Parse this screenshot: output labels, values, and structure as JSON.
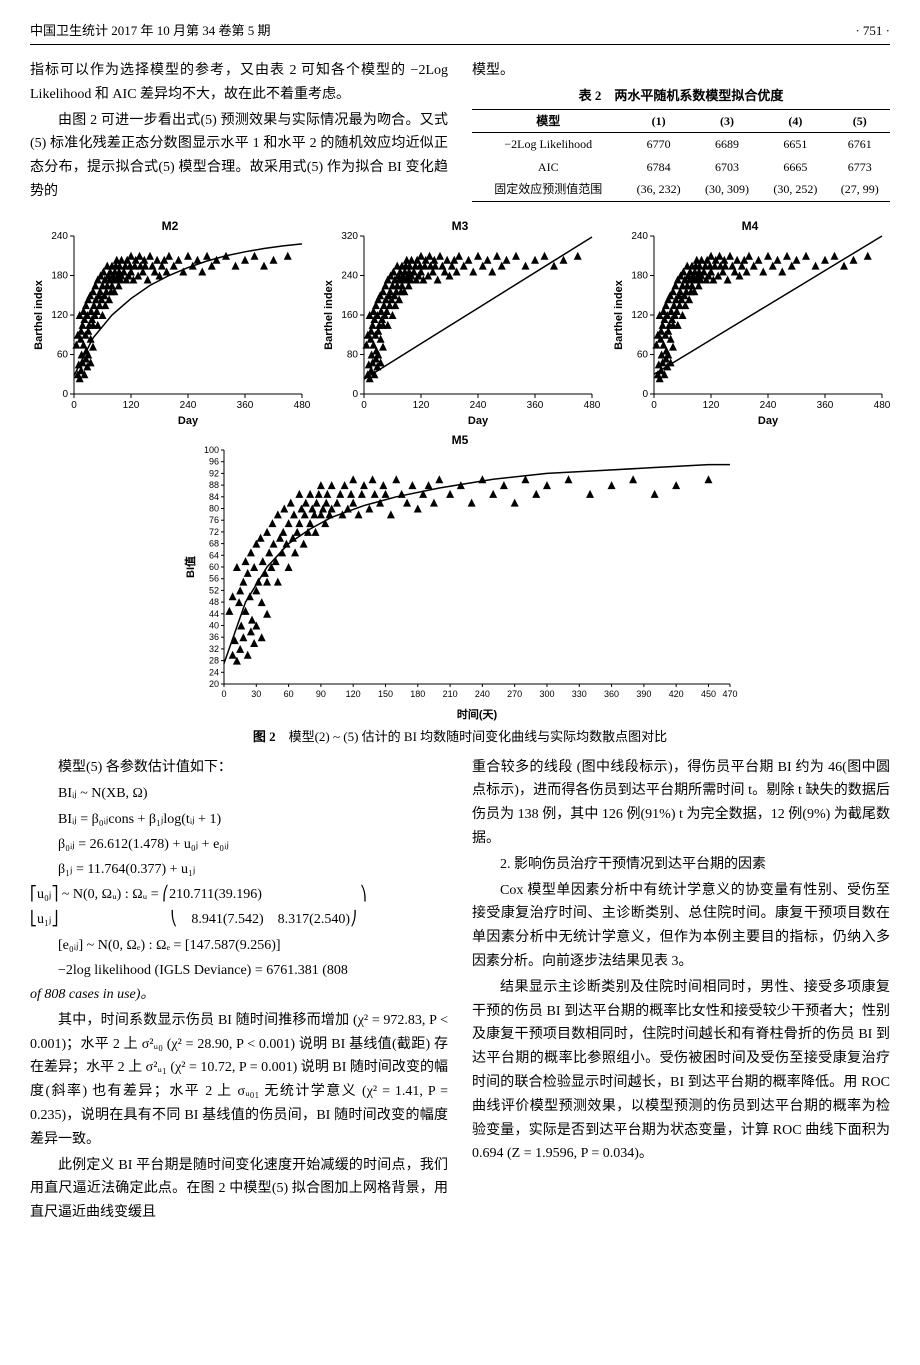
{
  "header": {
    "left": "中国卫生统计 2017 年 10 月第 34 卷第 5 期",
    "right": "· 751 ·"
  },
  "intro": {
    "p1": "指标可以作为选择模型的参考，又由表 2 可知各个模型的 −2Log Likelihood 和 AIC 差异均不大，故在此不着重考虑。",
    "p2": "由图 2 可进一步看出式(5) 预测效果与实际情况最为吻合。又式(5) 标准化残差正态分数图显示水平 1 和水平 2 的随机效应均近似正态分布，提示拟合式(5) 模型合理。故采用式(5) 作为拟合 BI 变化趋势的",
    "p2r": "模型。"
  },
  "table2": {
    "caption": "表 2　两水平随机系数模型拟合优度",
    "head": [
      "模型",
      "(1)",
      "(3)",
      "(4)",
      "(5)"
    ],
    "rows": [
      [
        "−2Log Likelihood",
        "6770",
        "6689",
        "6651",
        "6761"
      ],
      [
        "AIC",
        "6784",
        "6703",
        "6665",
        "6773"
      ],
      [
        "固定效应预测值范围",
        "(36, 232)",
        "(30, 309)",
        "(30, 252)",
        "(27, 99)"
      ]
    ]
  },
  "charts_style": {
    "bg": "#ffffff",
    "axis_color": "#000000",
    "marker": "triangle",
    "marker_color": "#000000",
    "marker_size": 4,
    "line_color": "#000000",
    "line_width": 1.5,
    "tick_font": 10,
    "label_font": 11,
    "title_font": 12
  },
  "chart_m2": {
    "title": "M2",
    "ylabel": "Barthel index",
    "xlabel": "Day",
    "xlim": [
      0,
      480
    ],
    "ylim": [
      0,
      240
    ],
    "xticks": [
      0,
      120,
      240,
      360,
      480
    ],
    "yticks": [
      0,
      60,
      120,
      180,
      240
    ],
    "curve": [
      [
        0,
        28
      ],
      [
        40,
        85
      ],
      [
        80,
        120
      ],
      [
        120,
        145
      ],
      [
        160,
        165
      ],
      [
        200,
        180
      ],
      [
        240,
        192
      ],
      [
        280,
        202
      ],
      [
        320,
        210
      ],
      [
        360,
        216
      ],
      [
        400,
        221
      ],
      [
        440,
        225
      ],
      [
        480,
        228
      ]
    ]
  },
  "chart_m3": {
    "title": "M3",
    "ylabel": "Barthel index",
    "xlabel": "Day",
    "xlim": [
      0,
      480
    ],
    "ylim": [
      0,
      320
    ],
    "xticks": [
      0,
      120,
      240,
      360,
      480
    ],
    "yticks": [
      0,
      80,
      160,
      240,
      320
    ],
    "curve": [
      [
        0,
        30
      ],
      [
        80,
        78
      ],
      [
        160,
        126
      ],
      [
        240,
        174
      ],
      [
        320,
        222
      ],
      [
        400,
        270
      ],
      [
        480,
        318
      ]
    ]
  },
  "chart_m4": {
    "title": "M4",
    "ylabel": "Barthel index",
    "xlabel": "Day",
    "xlim": [
      0,
      480
    ],
    "ylim": [
      0,
      240
    ],
    "xticks": [
      0,
      120,
      240,
      360,
      480
    ],
    "yticks": [
      0,
      60,
      120,
      180,
      240
    ],
    "curve": [
      [
        0,
        30
      ],
      [
        80,
        65
      ],
      [
        160,
        100
      ],
      [
        240,
        135
      ],
      [
        320,
        170
      ],
      [
        400,
        205
      ],
      [
        480,
        240
      ]
    ]
  },
  "chart_m5": {
    "title": "M5",
    "ylabel": "BI值",
    "xlabel": "时间(天)",
    "xlim": [
      0,
      470
    ],
    "ylim": [
      20,
      100
    ],
    "xticks": [
      0,
      30,
      60,
      90,
      120,
      150,
      180,
      210,
      240,
      270,
      300,
      330,
      360,
      390,
      420,
      450,
      470
    ],
    "yticks": [
      20,
      24,
      28,
      32,
      36,
      40,
      44,
      48,
      52,
      56,
      60,
      64,
      68,
      72,
      76,
      80,
      84,
      88,
      92,
      96,
      100
    ],
    "curve": [
      [
        0,
        27
      ],
      [
        20,
        48
      ],
      [
        40,
        60
      ],
      [
        60,
        68
      ],
      [
        80,
        73
      ],
      [
        100,
        77
      ],
      [
        130,
        81
      ],
      [
        160,
        84
      ],
      [
        200,
        87
      ],
      [
        250,
        90
      ],
      [
        300,
        92
      ],
      [
        350,
        93
      ],
      [
        400,
        94
      ],
      [
        450,
        95
      ],
      [
        470,
        95
      ]
    ]
  },
  "scatter": [
    [
      5,
      45
    ],
    [
      8,
      50
    ],
    [
      10,
      35
    ],
    [
      12,
      60
    ],
    [
      14,
      48
    ],
    [
      15,
      52
    ],
    [
      16,
      40
    ],
    [
      18,
      55
    ],
    [
      20,
      62
    ],
    [
      20,
      45
    ],
    [
      22,
      58
    ],
    [
      24,
      50
    ],
    [
      25,
      65
    ],
    [
      26,
      42
    ],
    [
      28,
      60
    ],
    [
      30,
      68
    ],
    [
      30,
      52
    ],
    [
      32,
      55
    ],
    [
      34,
      70
    ],
    [
      35,
      48
    ],
    [
      36,
      62
    ],
    [
      38,
      58
    ],
    [
      40,
      72
    ],
    [
      40,
      55
    ],
    [
      42,
      65
    ],
    [
      44,
      60
    ],
    [
      45,
      75
    ],
    [
      46,
      68
    ],
    [
      48,
      62
    ],
    [
      50,
      78
    ],
    [
      50,
      55
    ],
    [
      52,
      70
    ],
    [
      54,
      65
    ],
    [
      55,
      72
    ],
    [
      56,
      80
    ],
    [
      58,
      68
    ],
    [
      60,
      75
    ],
    [
      60,
      60
    ],
    [
      62,
      82
    ],
    [
      64,
      70
    ],
    [
      65,
      78
    ],
    [
      66,
      65
    ],
    [
      68,
      72
    ],
    [
      70,
      85
    ],
    [
      70,
      75
    ],
    [
      72,
      80
    ],
    [
      74,
      68
    ],
    [
      75,
      78
    ],
    [
      76,
      82
    ],
    [
      78,
      72
    ],
    [
      80,
      85
    ],
    [
      80,
      75
    ],
    [
      82,
      80
    ],
    [
      84,
      78
    ],
    [
      85,
      72
    ],
    [
      86,
      82
    ],
    [
      88,
      85
    ],
    [
      90,
      78
    ],
    [
      90,
      88
    ],
    [
      92,
      80
    ],
    [
      94,
      75
    ],
    [
      95,
      82
    ],
    [
      96,
      85
    ],
    [
      98,
      78
    ],
    [
      100,
      88
    ],
    [
      100,
      80
    ],
    [
      105,
      82
    ],
    [
      108,
      85
    ],
    [
      110,
      78
    ],
    [
      112,
      88
    ],
    [
      115,
      80
    ],
    [
      118,
      85
    ],
    [
      120,
      82
    ],
    [
      120,
      90
    ],
    [
      125,
      78
    ],
    [
      128,
      85
    ],
    [
      130,
      88
    ],
    [
      135,
      80
    ],
    [
      138,
      90
    ],
    [
      140,
      85
    ],
    [
      145,
      82
    ],
    [
      148,
      88
    ],
    [
      150,
      85
    ],
    [
      155,
      78
    ],
    [
      160,
      90
    ],
    [
      165,
      85
    ],
    [
      170,
      82
    ],
    [
      175,
      88
    ],
    [
      180,
      80
    ],
    [
      185,
      85
    ],
    [
      190,
      88
    ],
    [
      195,
      82
    ],
    [
      200,
      90
    ],
    [
      210,
      85
    ],
    [
      220,
      88
    ],
    [
      230,
      82
    ],
    [
      240,
      90
    ],
    [
      250,
      85
    ],
    [
      260,
      88
    ],
    [
      270,
      82
    ],
    [
      280,
      90
    ],
    [
      290,
      85
    ],
    [
      300,
      88
    ],
    [
      320,
      90
    ],
    [
      340,
      85
    ],
    [
      360,
      88
    ],
    [
      380,
      90
    ],
    [
      400,
      85
    ],
    [
      420,
      88
    ],
    [
      450,
      90
    ],
    [
      8,
      30
    ],
    [
      12,
      28
    ],
    [
      15,
      32
    ],
    [
      18,
      36
    ],
    [
      22,
      30
    ],
    [
      25,
      38
    ],
    [
      28,
      34
    ],
    [
      30,
      40
    ],
    [
      35,
      36
    ],
    [
      40,
      44
    ]
  ],
  "fig2_caption_b": "图 2",
  "fig2_caption": "　模型(2) ~ (5) 估计的 BI 均数随时间变化曲线与实际均数散点图对比",
  "eq_intro": "模型(5) 各参数估计值如下：",
  "equations": [
    "BIᵢⱼ ~ N(XB, Ω)",
    "BIᵢⱼ = β₀ᵢⱼcons + β₁ⱼlog(tᵢⱼ + 1)",
    "β₀ᵢⱼ = 26.612(1.478) + u₀ⱼ + e₀ᵢⱼ",
    "β₁ⱼ = 11.764(0.377) + u₁ⱼ"
  ],
  "matrix_line": "⎡u₀ⱼ⎤ ~ N(0, Ωᵤ) : Ωᵤ = ⎛210.711(39.196)　　　　　　　⎞",
  "matrix_line2": "⎣u₁ⱼ⎦　　　　　　　　⎝　8.941(7.542)　8.317(2.540)⎠",
  "eq_e": "[e₀ᵢⱼ] ~ N(0, Ωₑ) : Ωₑ = [147.587(9.256)]",
  "eq_dev": "−2log likelihood (IGLS Deviance) = 6761.381 (808",
  "eq_dev2": "of 808 cases in use)。",
  "body": {
    "p3": "其中，时间系数显示伤员 BI 随时间推移而增加 (χ² = 972.83, P < 0.001)；水平 2 上 σ²ᵤ₀ (χ² = 28.90, P < 0.001) 说明 BI 基线值(截距) 存在差异；水平 2 上 σ²ᵤ₁ (χ² = 10.72, P = 0.001) 说明 BI 随时间改变的幅度(斜率) 也有差异；水平 2 上 σᵤ₀₁ 无统计学意义 (χ² = 1.41, P = 0.235)，说明在具有不同 BI 基线值的伤员间，BI 随时间改变的幅度差异一致。",
    "p4": "此例定义 BI 平台期是随时间变化速度开始减缓的时间点，我们用直尺逼近法确定此点。在图 2 中模型(5) 拟合图加上网格背景，用直尺逼近曲线变缓且",
    "p5": "重合较多的线段 (图中线段标示)，得伤员平台期 BI 约为 46(图中圆点标示)，进而得各伤员到达平台期所需时间 t。剔除 t 缺失的数据后伤员为 138 例，其中 126 例(91%) t 为完全数据，12 例(9%) 为截尾数据。",
    "h2": "2. 影响伤员治疗干预情况到达平台期的因素",
    "p6": "Cox 模型单因素分析中有统计学意义的协变量有性别、受伤至接受康复治疗时间、主诊断类别、总住院时间。康复干预项目数在单因素分析中无统计学意义，但作为本例主要目的指标，仍纳入多因素分析。向前逐步法结果见表 3。",
    "p7": "结果显示主诊断类别及住院时间相同时，男性、接受多项康复干预的伤员 BI 到达平台期的概率比女性和接受较少干预者大；性别及康复干预项目数相同时，住院时间越长和有脊柱骨折的伤员 BI 到达平台期的概率比参照组小。受伤被困时间及受伤至接受康复治疗时间的联合检验显示时间越长，BI 到达平台期的概率降低。用 ROC 曲线评价模型预测效果，以模型预测的伤员到达平台期的概率为检验变量，实际是否到达平台期为状态变量，计算 ROC 曲线下面积为 0.694 (Z = 1.9596, P = 0.034)。"
  }
}
